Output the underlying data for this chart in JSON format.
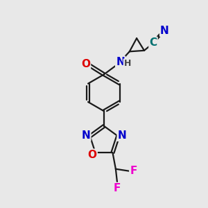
{
  "bg_color": "#e8e8e8",
  "bond_color": "#1a1a1a",
  "bond_width": 1.6,
  "atom_colors": {
    "N": "#0000cc",
    "O": "#dd0000",
    "F": "#ee00cc",
    "C_cyan": "#007070",
    "H": "#444444"
  },
  "font_size_large": 11,
  "font_size_small": 9,
  "figsize": [
    3.0,
    3.0
  ],
  "dpi": 100
}
